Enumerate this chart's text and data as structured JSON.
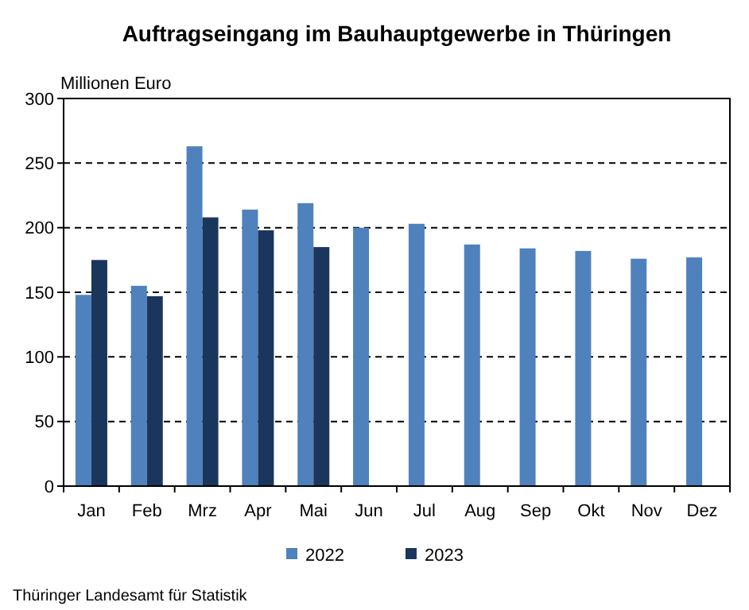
{
  "chart_data": {
    "type": "bar",
    "title": "Auftragseingang im Bauhauptgewerbe in Thüringen",
    "ylabel": "Millionen Euro",
    "categories": [
      "Jan",
      "Feb",
      "Mrz",
      "Apr",
      "Mai",
      "Jun",
      "Jul",
      "Aug",
      "Sep",
      "Okt",
      "Nov",
      "Dez"
    ],
    "series": [
      {
        "name": "2022",
        "color": "#4f81bd",
        "values": [
          148,
          155,
          263,
          214,
          219,
          200,
          203,
          187,
          184,
          182,
          176,
          177
        ]
      },
      {
        "name": "2023",
        "color": "#1b365d",
        "values": [
          175,
          147,
          208,
          198,
          185,
          null,
          null,
          null,
          null,
          null,
          null,
          null
        ]
      }
    ],
    "ylim": [
      0,
      300
    ],
    "yticks": [
      0,
      50,
      100,
      150,
      200,
      250,
      300
    ],
    "grid": "y",
    "legend": "bottom",
    "annotations": [
      "Thüringer Landesamt für Statistik"
    ]
  }
}
